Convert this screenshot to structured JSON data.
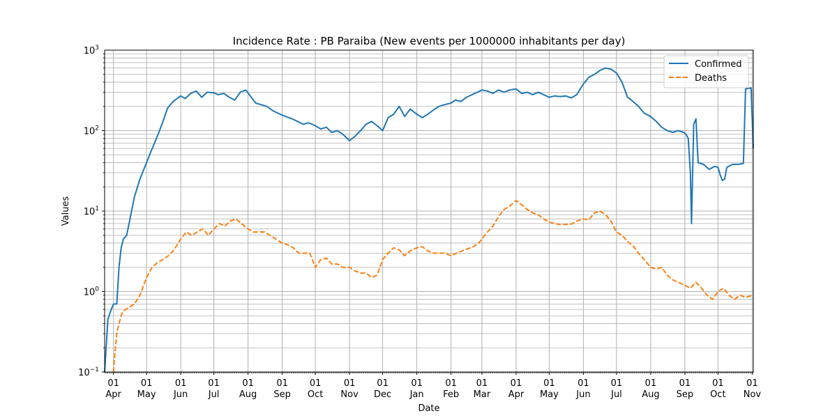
{
  "chart_data": {
    "type": "line",
    "title": "Incidence Rate : PB Paraiba (New events per 1000000 inhabitants per day)",
    "xlabel": "Date",
    "ylabel": "Values",
    "yscale": "log",
    "ylim": [
      0.1,
      1000
    ],
    "xlim": [
      "2020-03-24",
      "2021-11-02"
    ],
    "grid": true,
    "legend_position": "top-right",
    "yticks": [
      {
        "value": 0.1,
        "base": "10",
        "exp": "−1"
      },
      {
        "value": 1,
        "base": "10",
        "exp": "0"
      },
      {
        "value": 10,
        "base": "10",
        "exp": "1"
      },
      {
        "value": 100,
        "base": "10",
        "exp": "2"
      },
      {
        "value": 1000,
        "base": "10",
        "exp": "3"
      }
    ],
    "xticks": [
      {
        "date": "2020-04-01",
        "day": "01",
        "month": "Apr"
      },
      {
        "date": "2020-05-01",
        "day": "01",
        "month": "May"
      },
      {
        "date": "2020-06-01",
        "day": "01",
        "month": "Jun"
      },
      {
        "date": "2020-07-01",
        "day": "01",
        "month": "Jul"
      },
      {
        "date": "2020-08-01",
        "day": "01",
        "month": "Aug"
      },
      {
        "date": "2020-09-01",
        "day": "01",
        "month": "Sep"
      },
      {
        "date": "2020-10-01",
        "day": "01",
        "month": "Oct"
      },
      {
        "date": "2020-11-01",
        "day": "01",
        "month": "Nov"
      },
      {
        "date": "2020-12-01",
        "day": "01",
        "month": "Dec"
      },
      {
        "date": "2021-01-01",
        "day": "01",
        "month": "Jan"
      },
      {
        "date": "2021-02-01",
        "day": "01",
        "month": "Feb"
      },
      {
        "date": "2021-03-01",
        "day": "01",
        "month": "Mar"
      },
      {
        "date": "2021-04-01",
        "day": "01",
        "month": "Apr"
      },
      {
        "date": "2021-05-01",
        "day": "01",
        "month": "May"
      },
      {
        "date": "2021-06-01",
        "day": "01",
        "month": "Jun"
      },
      {
        "date": "2021-07-01",
        "day": "01",
        "month": "Jul"
      },
      {
        "date": "2021-08-01",
        "day": "01",
        "month": "Aug"
      },
      {
        "date": "2021-09-01",
        "day": "01",
        "month": "Sep"
      },
      {
        "date": "2021-10-01",
        "day": "01",
        "month": "Oct"
      },
      {
        "date": "2021-11-01",
        "day": "01",
        "month": "Nov"
      }
    ],
    "series": [
      {
        "name": "Confirmed",
        "color": "#1f77b4",
        "style": "solid",
        "points": [
          [
            "2020-03-24",
            0.1
          ],
          [
            "2020-03-27",
            0.45
          ],
          [
            "2020-03-30",
            0.6
          ],
          [
            "2020-04-01",
            0.7
          ],
          [
            "2020-04-04",
            0.7
          ],
          [
            "2020-04-06",
            2.0
          ],
          [
            "2020-04-08",
            3.5
          ],
          [
            "2020-04-10",
            4.5
          ],
          [
            "2020-04-13",
            5.0
          ],
          [
            "2020-04-16",
            8.0
          ],
          [
            "2020-04-20",
            15.0
          ],
          [
            "2020-04-25",
            25.0
          ],
          [
            "2020-05-01",
            40.0
          ],
          [
            "2020-05-05",
            55.0
          ],
          [
            "2020-05-10",
            80.0
          ],
          [
            "2020-05-15",
            120.0
          ],
          [
            "2020-05-20",
            190.0
          ],
          [
            "2020-05-25",
            230.0
          ],
          [
            "2020-06-01",
            270.0
          ],
          [
            "2020-06-05",
            250.0
          ],
          [
            "2020-06-10",
            290.0
          ],
          [
            "2020-06-15",
            310.0
          ],
          [
            "2020-06-20",
            260.0
          ],
          [
            "2020-06-25",
            300.0
          ],
          [
            "2020-07-01",
            295.0
          ],
          [
            "2020-07-05",
            280.0
          ],
          [
            "2020-07-10",
            290.0
          ],
          [
            "2020-07-15",
            260.0
          ],
          [
            "2020-07-20",
            240.0
          ],
          [
            "2020-07-25",
            300.0
          ],
          [
            "2020-07-30",
            320.0
          ],
          [
            "2020-08-03",
            270.0
          ],
          [
            "2020-08-08",
            220.0
          ],
          [
            "2020-08-13",
            210.0
          ],
          [
            "2020-08-18",
            200.0
          ],
          [
            "2020-08-24",
            175.0
          ],
          [
            "2020-08-30",
            160.0
          ],
          [
            "2020-09-04",
            150.0
          ],
          [
            "2020-09-10",
            140.0
          ],
          [
            "2020-09-15",
            130.0
          ],
          [
            "2020-09-20",
            120.0
          ],
          [
            "2020-09-25",
            125.0
          ],
          [
            "2020-10-01",
            115.0
          ],
          [
            "2020-10-06",
            105.0
          ],
          [
            "2020-10-11",
            110.0
          ],
          [
            "2020-10-16",
            95.0
          ],
          [
            "2020-10-21",
            100.0
          ],
          [
            "2020-10-26",
            90.0
          ],
          [
            "2020-11-01",
            75.0
          ],
          [
            "2020-11-06",
            85.0
          ],
          [
            "2020-11-11",
            100.0
          ],
          [
            "2020-11-16",
            120.0
          ],
          [
            "2020-11-21",
            130.0
          ],
          [
            "2020-11-26",
            115.0
          ],
          [
            "2020-12-01",
            100.0
          ],
          [
            "2020-12-06",
            145.0
          ],
          [
            "2020-12-11",
            160.0
          ],
          [
            "2020-12-16",
            200.0
          ],
          [
            "2020-12-21",
            150.0
          ],
          [
            "2020-12-26",
            185.0
          ],
          [
            "2021-01-01",
            160.0
          ],
          [
            "2021-01-06",
            145.0
          ],
          [
            "2021-01-11",
            160.0
          ],
          [
            "2021-01-16",
            180.0
          ],
          [
            "2021-01-21",
            200.0
          ],
          [
            "2021-01-26",
            210.0
          ],
          [
            "2021-02-01",
            220.0
          ],
          [
            "2021-02-05",
            240.0
          ],
          [
            "2021-02-10",
            230.0
          ],
          [
            "2021-02-15",
            260.0
          ],
          [
            "2021-02-20",
            280.0
          ],
          [
            "2021-02-25",
            300.0
          ],
          [
            "2021-03-01",
            320.0
          ],
          [
            "2021-03-06",
            310.0
          ],
          [
            "2021-03-11",
            290.0
          ],
          [
            "2021-03-16",
            320.0
          ],
          [
            "2021-03-21",
            300.0
          ],
          [
            "2021-03-26",
            320.0
          ],
          [
            "2021-04-01",
            330.0
          ],
          [
            "2021-04-06",
            290.0
          ],
          [
            "2021-04-11",
            300.0
          ],
          [
            "2021-04-16",
            280.0
          ],
          [
            "2021-04-21",
            300.0
          ],
          [
            "2021-04-26",
            280.0
          ],
          [
            "2021-05-01",
            260.0
          ],
          [
            "2021-05-06",
            270.0
          ],
          [
            "2021-05-11",
            265.0
          ],
          [
            "2021-05-16",
            270.0
          ],
          [
            "2021-05-21",
            255.0
          ],
          [
            "2021-05-26",
            280.0
          ],
          [
            "2021-06-01",
            380.0
          ],
          [
            "2021-06-06",
            460.0
          ],
          [
            "2021-06-11",
            500.0
          ],
          [
            "2021-06-16",
            560.0
          ],
          [
            "2021-06-21",
            600.0
          ],
          [
            "2021-06-26",
            580.0
          ],
          [
            "2021-07-01",
            520.0
          ],
          [
            "2021-07-06",
            400.0
          ],
          [
            "2021-07-11",
            260.0
          ],
          [
            "2021-07-16",
            230.0
          ],
          [
            "2021-07-21",
            200.0
          ],
          [
            "2021-07-26",
            165.0
          ],
          [
            "2021-08-01",
            150.0
          ],
          [
            "2021-08-06",
            130.0
          ],
          [
            "2021-08-11",
            110.0
          ],
          [
            "2021-08-16",
            100.0
          ],
          [
            "2021-08-21",
            95.0
          ],
          [
            "2021-08-26",
            100.0
          ],
          [
            "2021-08-31",
            95.0
          ],
          [
            "2021-09-02",
            90.0
          ],
          [
            "2021-09-04",
            80.0
          ],
          [
            "2021-09-06",
            30.0
          ],
          [
            "2021-09-07",
            7.0
          ],
          [
            "2021-09-08",
            30.0
          ],
          [
            "2021-09-09",
            120.0
          ],
          [
            "2021-09-11",
            140.0
          ],
          [
            "2021-09-13",
            40.0
          ],
          [
            "2021-09-18",
            38.0
          ],
          [
            "2021-09-23",
            33.0
          ],
          [
            "2021-09-28",
            36.0
          ],
          [
            "2021-10-01",
            35.0
          ],
          [
            "2021-10-03",
            28.0
          ],
          [
            "2021-10-05",
            24.0
          ],
          [
            "2021-10-07",
            25.0
          ],
          [
            "2021-10-09",
            35.0
          ],
          [
            "2021-10-14",
            38.0
          ],
          [
            "2021-10-19",
            38.0
          ],
          [
            "2021-10-24",
            39.0
          ],
          [
            "2021-10-26",
            330.0
          ],
          [
            "2021-10-31",
            340.0
          ],
          [
            "2021-11-02",
            60.0
          ]
        ]
      },
      {
        "name": "Deaths",
        "color": "#ff7f0e",
        "style": "dashed",
        "points": [
          [
            "2020-04-01",
            0.1
          ],
          [
            "2020-04-02",
            0.15
          ],
          [
            "2020-04-04",
            0.3
          ],
          [
            "2020-04-06",
            0.4
          ],
          [
            "2020-04-09",
            0.55
          ],
          [
            "2020-04-12",
            0.6
          ],
          [
            "2020-04-16",
            0.65
          ],
          [
            "2020-04-20",
            0.7
          ],
          [
            "2020-04-25",
            0.9
          ],
          [
            "2020-05-01",
            1.5
          ],
          [
            "2020-05-06",
            2.0
          ],
          [
            "2020-05-11",
            2.3
          ],
          [
            "2020-05-16",
            2.5
          ],
          [
            "2020-05-21",
            2.8
          ],
          [
            "2020-05-26",
            3.3
          ],
          [
            "2020-06-01",
            4.5
          ],
          [
            "2020-06-06",
            5.5
          ],
          [
            "2020-06-11",
            5.0
          ],
          [
            "2020-06-16",
            5.5
          ],
          [
            "2020-06-21",
            6.0
          ],
          [
            "2020-06-26",
            5.0
          ],
          [
            "2020-07-01",
            6.0
          ],
          [
            "2020-07-06",
            7.0
          ],
          [
            "2020-07-11",
            6.5
          ],
          [
            "2020-07-16",
            7.5
          ],
          [
            "2020-07-21",
            8.0
          ],
          [
            "2020-07-26",
            7.0
          ],
          [
            "2020-08-01",
            6.0
          ],
          [
            "2020-08-06",
            5.5
          ],
          [
            "2020-08-11",
            5.5
          ],
          [
            "2020-08-16",
            5.5
          ],
          [
            "2020-08-21",
            5.0
          ],
          [
            "2020-08-26",
            4.5
          ],
          [
            "2020-09-01",
            4.0
          ],
          [
            "2020-09-06",
            3.8
          ],
          [
            "2020-09-11",
            3.5
          ],
          [
            "2020-09-16",
            3.0
          ],
          [
            "2020-09-21",
            3.0
          ],
          [
            "2020-09-26",
            3.0
          ],
          [
            "2020-10-01",
            2.0
          ],
          [
            "2020-10-06",
            2.5
          ],
          [
            "2020-10-11",
            2.6
          ],
          [
            "2020-10-16",
            2.2
          ],
          [
            "2020-10-21",
            2.2
          ],
          [
            "2020-10-26",
            2.0
          ],
          [
            "2020-11-01",
            2.0
          ],
          [
            "2020-11-06",
            1.8
          ],
          [
            "2020-11-11",
            1.7
          ],
          [
            "2020-11-16",
            1.7
          ],
          [
            "2020-11-21",
            1.5
          ],
          [
            "2020-11-26",
            1.6
          ],
          [
            "2020-12-01",
            2.5
          ],
          [
            "2020-12-06",
            3.0
          ],
          [
            "2020-12-11",
            3.5
          ],
          [
            "2020-12-16",
            3.3
          ],
          [
            "2020-12-21",
            2.8
          ],
          [
            "2020-12-26",
            3.2
          ],
          [
            "2021-01-01",
            3.5
          ],
          [
            "2021-01-06",
            3.6
          ],
          [
            "2021-01-11",
            3.2
          ],
          [
            "2021-01-16",
            3.0
          ],
          [
            "2021-01-21",
            3.0
          ],
          [
            "2021-01-26",
            3.0
          ],
          [
            "2021-02-01",
            2.8
          ],
          [
            "2021-02-06",
            3.0
          ],
          [
            "2021-02-11",
            3.2
          ],
          [
            "2021-02-16",
            3.4
          ],
          [
            "2021-02-21",
            3.6
          ],
          [
            "2021-02-26",
            4.0
          ],
          [
            "2021-03-01",
            4.5
          ],
          [
            "2021-03-06",
            5.5
          ],
          [
            "2021-03-11",
            6.5
          ],
          [
            "2021-03-16",
            8.5
          ],
          [
            "2021-03-21",
            10.5
          ],
          [
            "2021-03-26",
            11.5
          ],
          [
            "2021-04-01",
            13.5
          ],
          [
            "2021-04-06",
            12.0
          ],
          [
            "2021-04-11",
            10.5
          ],
          [
            "2021-04-16",
            9.5
          ],
          [
            "2021-04-21",
            9.0
          ],
          [
            "2021-04-26",
            8.0
          ],
          [
            "2021-05-01",
            7.3
          ],
          [
            "2021-05-06",
            7.0
          ],
          [
            "2021-05-11",
            6.8
          ],
          [
            "2021-05-16",
            6.8
          ],
          [
            "2021-05-21",
            6.9
          ],
          [
            "2021-05-26",
            7.5
          ],
          [
            "2021-06-01",
            8.0
          ],
          [
            "2021-06-06",
            7.8
          ],
          [
            "2021-06-11",
            9.5
          ],
          [
            "2021-06-16",
            10.0
          ],
          [
            "2021-06-21",
            9.0
          ],
          [
            "2021-06-26",
            7.5
          ],
          [
            "2021-07-01",
            5.5
          ],
          [
            "2021-07-06",
            5.0
          ],
          [
            "2021-07-11",
            4.2
          ],
          [
            "2021-07-16",
            3.7
          ],
          [
            "2021-07-21",
            3.0
          ],
          [
            "2021-07-26",
            2.5
          ],
          [
            "2021-08-01",
            2.0
          ],
          [
            "2021-08-06",
            1.9
          ],
          [
            "2021-08-11",
            2.0
          ],
          [
            "2021-08-16",
            1.6
          ],
          [
            "2021-08-21",
            1.4
          ],
          [
            "2021-08-26",
            1.3
          ],
          [
            "2021-09-01",
            1.2
          ],
          [
            "2021-09-06",
            1.1
          ],
          [
            "2021-09-11",
            1.3
          ],
          [
            "2021-09-16",
            1.1
          ],
          [
            "2021-09-21",
            0.9
          ],
          [
            "2021-09-26",
            0.8
          ],
          [
            "2021-10-01",
            1.0
          ],
          [
            "2021-10-06",
            1.1
          ],
          [
            "2021-10-11",
            0.9
          ],
          [
            "2021-10-16",
            0.8
          ],
          [
            "2021-10-21",
            0.9
          ],
          [
            "2021-10-26",
            0.85
          ],
          [
            "2021-11-02",
            0.9
          ]
        ]
      }
    ]
  }
}
